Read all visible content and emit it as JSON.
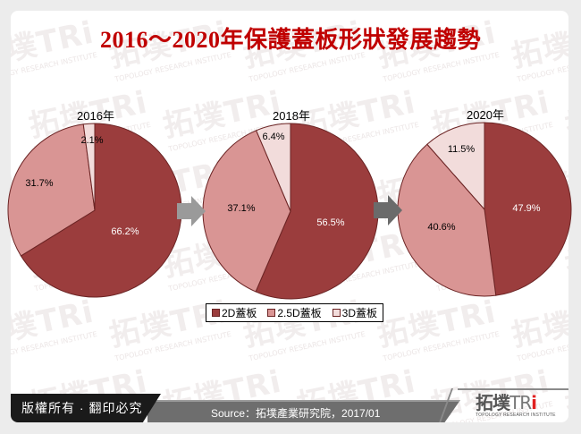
{
  "title": "2016～2020年保護蓋板形狀發展趨勢",
  "watermark": {
    "brand": "拓墣TRi",
    "subtitle": "TOPOLOGY RESEARCH INSTITUTE"
  },
  "legend": {
    "items": [
      {
        "label": "2D蓋板",
        "color": "#9b3d3d"
      },
      {
        "label": "2.5D蓋板",
        "color": "#d99594"
      },
      {
        "label": "3D蓋板",
        "color": "#f2dcdb"
      }
    ]
  },
  "arrows": [
    {
      "color": "#9a9a9a"
    },
    {
      "color": "#6b6b6b"
    }
  ],
  "footer": {
    "copyright": "版權所有 · 翻印必究",
    "source": "Source：拓墣產業研究院，2017/01",
    "logo_main": "拓墣",
    "logo_tri": "TR",
    "logo_i": "i",
    "logo_sub": "TOPOLOGY RESEARCH INSTITUTE"
  },
  "chart_data": [
    {
      "type": "pie",
      "title": "2016年",
      "categories": [
        "2D蓋板",
        "2.5D蓋板",
        "3D蓋板"
      ],
      "values": [
        66.2,
        31.7,
        2.1
      ],
      "labels": [
        "66.2%",
        "31.7%",
        "2.1%"
      ],
      "colors": [
        "#9b3d3d",
        "#d99594",
        "#f2dcdb"
      ],
      "start_angle": "12 o'clock, clockwise",
      "legend_position": "bottom"
    },
    {
      "type": "pie",
      "title": "2018年",
      "categories": [
        "2D蓋板",
        "2.5D蓋板",
        "3D蓋板"
      ],
      "values": [
        56.5,
        37.1,
        6.4
      ],
      "labels": [
        "56.5%",
        "37.1%",
        "6.4%"
      ],
      "colors": [
        "#9b3d3d",
        "#d99594",
        "#f2dcdb"
      ],
      "start_angle": "12 o'clock, clockwise",
      "legend_position": "bottom"
    },
    {
      "type": "pie",
      "title": "2020年",
      "categories": [
        "2D蓋板",
        "2.5D蓋板",
        "3D蓋板"
      ],
      "values": [
        47.9,
        40.6,
        11.5
      ],
      "labels": [
        "47.9%",
        "40.6%",
        "11.5%"
      ],
      "colors": [
        "#9b3d3d",
        "#d99594",
        "#f2dcdb"
      ],
      "start_angle": "12 o'clock, clockwise",
      "legend_position": "bottom"
    }
  ]
}
